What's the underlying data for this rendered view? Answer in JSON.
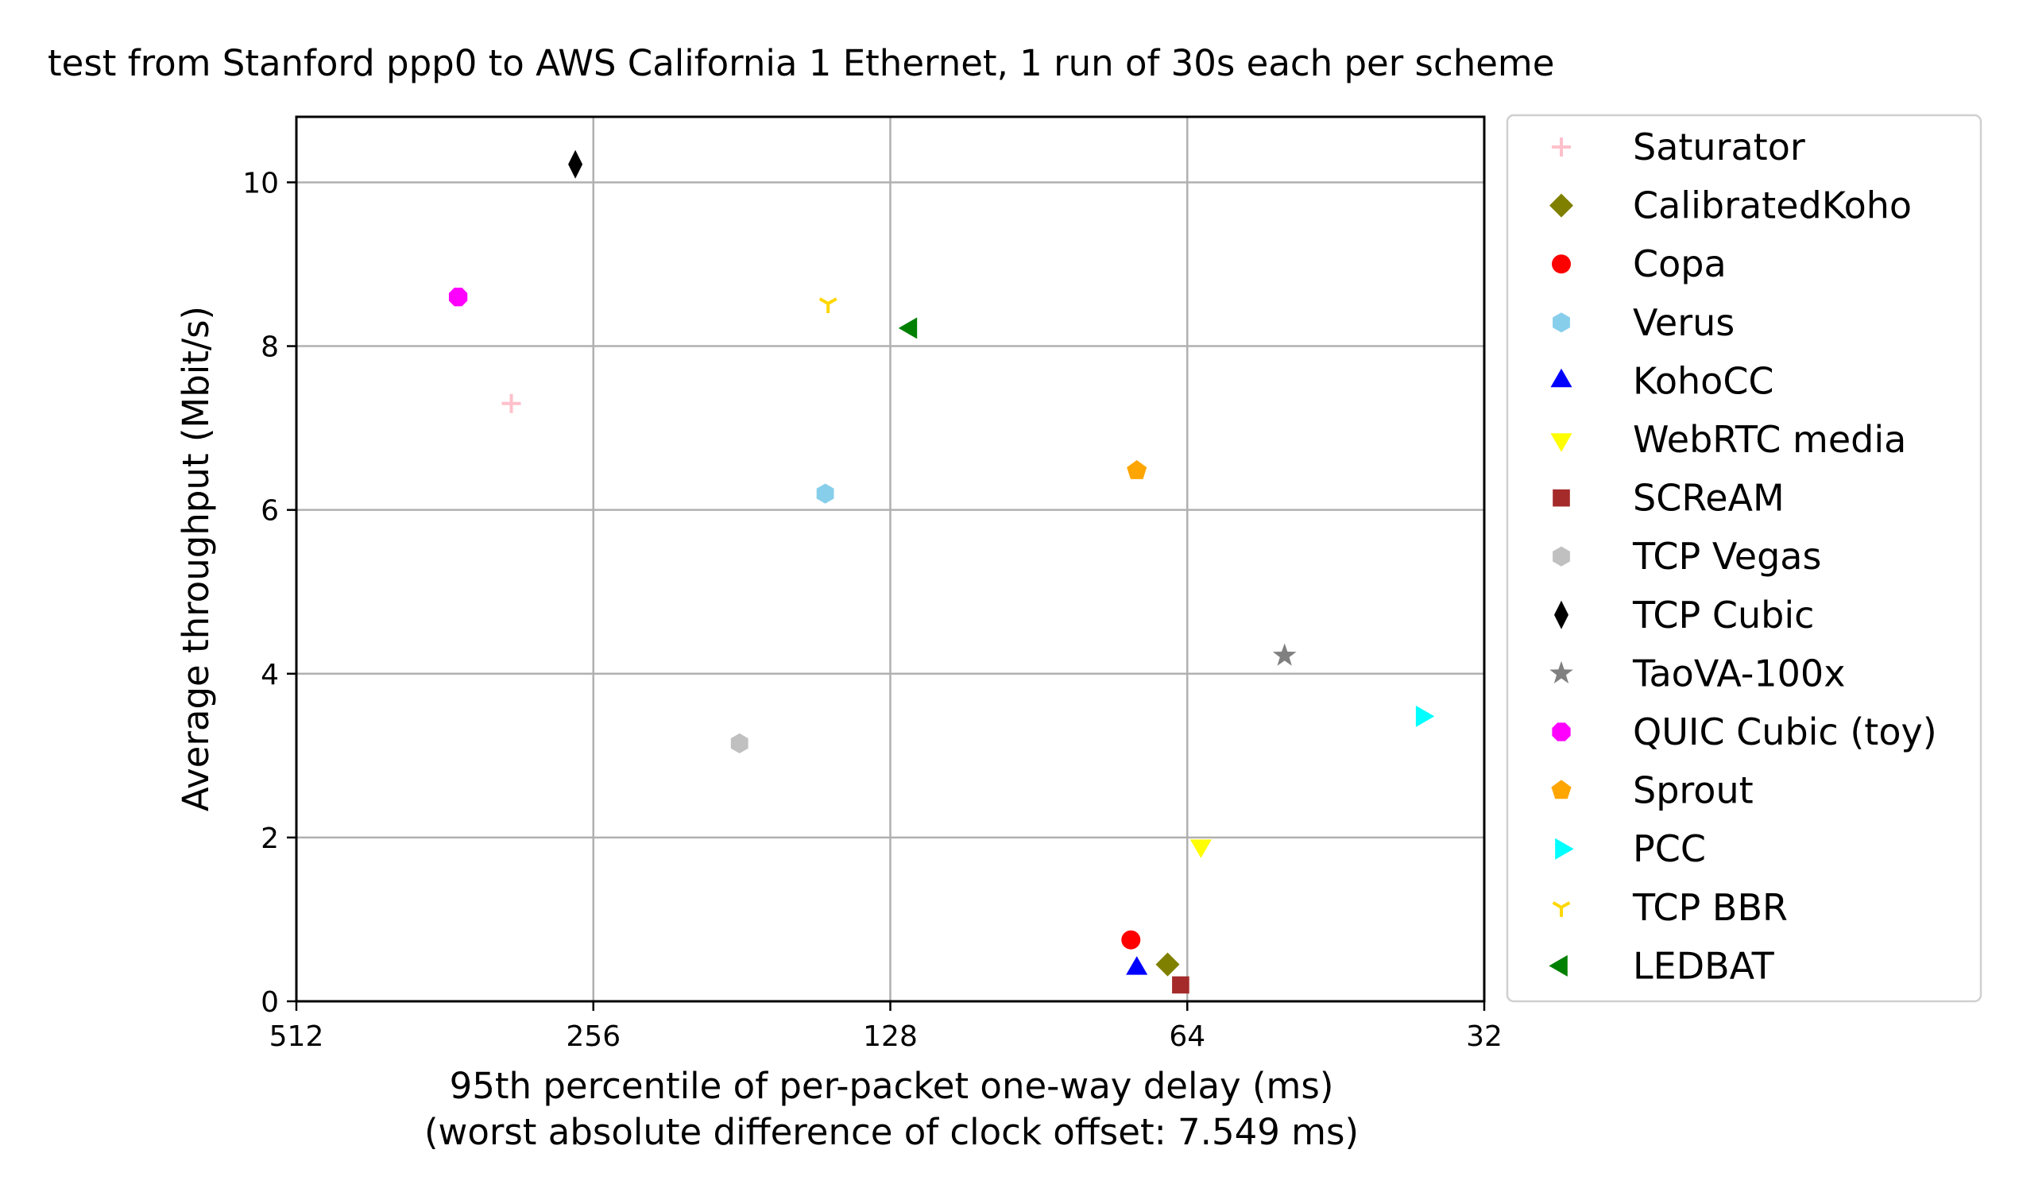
{
  "chart_data": {
    "type": "scatter",
    "title": "test from Stanford ppp0 to AWS California 1 Ethernet, 1 run of 30s each per scheme",
    "xlabel": "95th percentile of per-packet one-way delay (ms)",
    "xlabel2": "(worst absolute difference of clock offset: 7.549 ms)",
    "ylabel": "Average throughput (Mbit/s)",
    "x_scale": "log2",
    "x_inverted": true,
    "xlim": [
      512,
      32
    ],
    "ylim": [
      0,
      10.8
    ],
    "xticks": [
      512,
      256,
      128,
      64,
      32
    ],
    "xtick_labels": [
      "512",
      "256",
      "128",
      "64",
      "32"
    ],
    "yticks": [
      0,
      2,
      4,
      6,
      8,
      10
    ],
    "ytick_labels": [
      "0",
      "2",
      "4",
      "6",
      "8",
      "10"
    ],
    "grid": true,
    "legend_position": "outside-right",
    "series": [
      {
        "name": "Saturator",
        "marker": "plus",
        "color": "#ffc0cb",
        "x": 310,
        "y": 7.3
      },
      {
        "name": "CalibratedKoho",
        "marker": "diamond",
        "color": "#808000",
        "x": 67,
        "y": 0.45
      },
      {
        "name": "Copa",
        "marker": "circle",
        "color": "#ff0000",
        "x": 73,
        "y": 0.75
      },
      {
        "name": "Verus",
        "marker": "hexagon",
        "color": "#87ceeb",
        "x": 149,
        "y": 6.2
      },
      {
        "name": "KohoCC",
        "marker": "triangle-up",
        "color": "#0000ff",
        "x": 72,
        "y": 0.4
      },
      {
        "name": "WebRTC media",
        "marker": "triangle-down",
        "color": "#ffff00",
        "x": 62,
        "y": 1.9
      },
      {
        "name": "SCReAM",
        "marker": "square",
        "color": "#a52a2a",
        "x": 65,
        "y": 0.2
      },
      {
        "name": "TCP Vegas",
        "marker": "hexagon",
        "color": "#c0c0c0",
        "x": 182,
        "y": 3.15
      },
      {
        "name": "TCP Cubic",
        "marker": "thin-diamond",
        "color": "#000000",
        "x": 267,
        "y": 10.22
      },
      {
        "name": "TaoVA-100x",
        "marker": "star",
        "color": "#808080",
        "x": 51,
        "y": 4.22
      },
      {
        "name": "QUIC Cubic (toy)",
        "marker": "octagon",
        "color": "#ff00ff",
        "x": 351,
        "y": 8.6
      },
      {
        "name": "Sprout",
        "marker": "pentagon",
        "color": "#ffa500",
        "x": 72,
        "y": 6.48
      },
      {
        "name": "PCC",
        "marker": "triangle-right",
        "color": "#00ffff",
        "x": 37,
        "y": 3.48
      },
      {
        "name": "TCP BBR",
        "marker": "tri-down",
        "color": "#ffd700",
        "x": 148,
        "y": 8.52
      },
      {
        "name": "LEDBAT",
        "marker": "triangle-left",
        "color": "#008000",
        "x": 122,
        "y": 8.22
      }
    ]
  }
}
